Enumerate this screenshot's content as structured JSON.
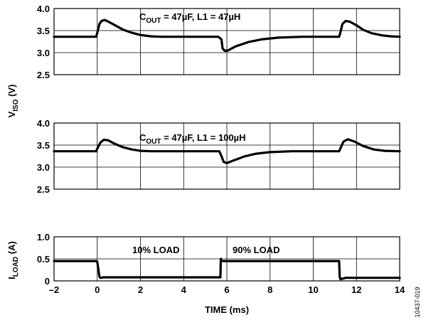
{
  "chart_data": [
    {
      "type": "line",
      "panel": "top",
      "annotation": "C_OUT = 47µF, L1 = 47µH",
      "annotation_parts": {
        "main": "C",
        "sub": "OUT",
        "rest": " = 47µF, L1 = 47µH"
      },
      "xlim": [
        -2,
        14
      ],
      "ylim": [
        2.5,
        4.0
      ],
      "yticks": [
        "2.5",
        "3.0",
        "3.5",
        "4.0"
      ],
      "grid": true,
      "series": [
        {
          "x": [
            -2,
            -0.05,
            0.0,
            0.1,
            0.2,
            0.35,
            0.6,
            0.9,
            1.2,
            1.6,
            2.0,
            2.5,
            3.0,
            4.0,
            5.6,
            5.75,
            5.8,
            5.9,
            6.05,
            6.4,
            7.0,
            7.6,
            8.4,
            9.5,
            11.2,
            11.25,
            11.35,
            11.5,
            11.7,
            12.0,
            12.3,
            12.7,
            13.2,
            13.6,
            14.0
          ],
          "y": [
            3.36,
            3.36,
            3.45,
            3.65,
            3.72,
            3.74,
            3.68,
            3.6,
            3.52,
            3.45,
            3.4,
            3.37,
            3.36,
            3.36,
            3.36,
            3.3,
            3.1,
            3.04,
            3.05,
            3.14,
            3.24,
            3.3,
            3.34,
            3.36,
            3.36,
            3.45,
            3.65,
            3.72,
            3.7,
            3.62,
            3.52,
            3.44,
            3.39,
            3.37,
            3.36
          ]
        }
      ]
    },
    {
      "type": "line",
      "panel": "middle",
      "annotation": "C_OUT = 47µF, L1 = 100µH",
      "annotation_parts": {
        "main": "C",
        "sub": "OUT",
        "rest": " = 47µF, L1 = 100µH"
      },
      "xlim": [
        -2,
        14
      ],
      "ylim": [
        2.5,
        4.0
      ],
      "yticks": [
        "2.5",
        "3.0",
        "3.5",
        "4.0"
      ],
      "grid": true,
      "series": [
        {
          "x": [
            -2,
            -0.05,
            0.0,
            0.15,
            0.3,
            0.5,
            0.8,
            1.2,
            1.6,
            2.0,
            2.5,
            3.5,
            5.65,
            5.75,
            5.85,
            6.0,
            6.3,
            6.8,
            7.3,
            8.0,
            9.0,
            11.2,
            11.25,
            11.4,
            11.6,
            11.9,
            12.3,
            12.8,
            13.3,
            14.0
          ],
          "y": [
            3.36,
            3.36,
            3.42,
            3.56,
            3.62,
            3.61,
            3.53,
            3.45,
            3.4,
            3.37,
            3.36,
            3.36,
            3.36,
            3.25,
            3.12,
            3.09,
            3.15,
            3.24,
            3.3,
            3.34,
            3.36,
            3.36,
            3.42,
            3.58,
            3.63,
            3.58,
            3.48,
            3.4,
            3.37,
            3.36
          ]
        }
      ]
    },
    {
      "type": "line",
      "panel": "bottom",
      "xlim": [
        -2,
        14
      ],
      "ylim": [
        0,
        1.0
      ],
      "xticks": [
        "–2",
        "0",
        "2",
        "4",
        "6",
        "8",
        "10",
        "12",
        "14"
      ],
      "yticks": [
        "0",
        "0.5",
        "1.0"
      ],
      "grid": true,
      "series": [
        {
          "x": [
            -2,
            -0.05,
            0.0,
            0.1,
            0.15,
            0.3,
            5.7,
            5.72,
            5.75,
            5.85,
            11.2,
            11.22,
            11.25,
            11.35,
            11.5,
            14.0
          ],
          "y": [
            0.45,
            0.45,
            0.43,
            0.1,
            0.07,
            0.08,
            0.08,
            0.5,
            0.46,
            0.45,
            0.45,
            0.1,
            0.04,
            0.05,
            0.07,
            0.07
          ]
        }
      ],
      "annotations": [
        "10% LOAD",
        "90% LOAD"
      ]
    }
  ],
  "labels": {
    "y_top_main": "V",
    "y_top_sub": "ISO",
    "y_top_unit": " (V)",
    "y_bottom_main": "I",
    "y_bottom_sub": "LOAD",
    "y_bottom_unit": " (A)",
    "x_title": "TIME (ms)",
    "figure_id": "10437-019"
  }
}
